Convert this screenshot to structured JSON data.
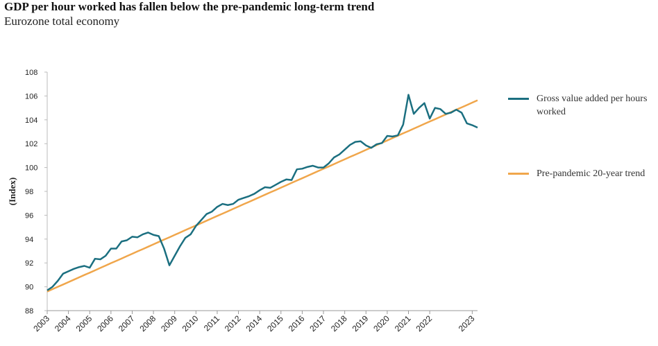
{
  "chart_data": {
    "type": "line",
    "title": "GDP per hour worked has fallen below the pre-pandemic long-term trend",
    "subtitle": "Eurozone total economy",
    "y_label": "(Index)",
    "categories": [
      "2003",
      null,
      null,
      null,
      "2004",
      null,
      null,
      null,
      "2005",
      null,
      null,
      null,
      "2006",
      null,
      null,
      null,
      "2007",
      null,
      null,
      null,
      "2008",
      null,
      null,
      null,
      "2009",
      null,
      null,
      null,
      "2010",
      null,
      null,
      null,
      "2011",
      null,
      null,
      null,
      "2012",
      null,
      null,
      null,
      "2014",
      null,
      null,
      null,
      "2015",
      null,
      null,
      null,
      "2016",
      null,
      null,
      null,
      "2017",
      null,
      null,
      null,
      "2018",
      null,
      null,
      null,
      "2019",
      null,
      null,
      null,
      "2020",
      null,
      null,
      null,
      "2021",
      null,
      null,
      null,
      "2022",
      null,
      null,
      null,
      null,
      null,
      null,
      null,
      "2023",
      null
    ],
    "series": [
      {
        "name": "Gross value added per hours worked",
        "color": "#1b6f80",
        "values": [
          89.7,
          90.0,
          90.5,
          91.1,
          91.3,
          91.5,
          91.65,
          91.75,
          91.6,
          92.35,
          92.3,
          92.6,
          93.2,
          93.2,
          93.8,
          93.9,
          94.2,
          94.15,
          94.4,
          94.55,
          94.35,
          94.25,
          93.2,
          91.8,
          92.6,
          93.4,
          94.1,
          94.4,
          95.1,
          95.6,
          96.1,
          96.3,
          96.7,
          96.95,
          96.85,
          96.95,
          97.3,
          97.45,
          97.6,
          97.8,
          98.1,
          98.35,
          98.3,
          98.55,
          98.8,
          99.0,
          98.95,
          99.85,
          99.9,
          100.05,
          100.15,
          100.0,
          100.0,
          100.35,
          100.85,
          101.1,
          101.5,
          101.9,
          102.15,
          102.2,
          101.85,
          101.65,
          101.95,
          102.05,
          102.65,
          102.6,
          102.7,
          103.6,
          106.1,
          104.5,
          105.0,
          105.4,
          104.1,
          105.0,
          104.9,
          104.5,
          104.6,
          104.85,
          104.6,
          103.7,
          103.55,
          103.35
        ]
      },
      {
        "name": "Pre-pandemic 20-year trend",
        "color": "#f0a64b",
        "values": [
          89.6,
          89.8,
          90.0,
          90.19,
          90.39,
          90.59,
          90.79,
          90.99,
          91.18,
          91.38,
          91.58,
          91.78,
          91.98,
          92.17,
          92.37,
          92.57,
          92.77,
          92.97,
          93.16,
          93.36,
          93.56,
          93.76,
          93.96,
          94.15,
          94.35,
          94.55,
          94.75,
          94.95,
          95.14,
          95.34,
          95.54,
          95.74,
          95.94,
          96.13,
          96.33,
          96.53,
          96.73,
          96.93,
          97.12,
          97.32,
          97.52,
          97.72,
          97.92,
          98.11,
          98.31,
          98.51,
          98.71,
          98.91,
          99.1,
          99.3,
          99.5,
          99.7,
          99.9,
          100.09,
          100.29,
          100.49,
          100.69,
          100.89,
          101.08,
          101.28,
          101.48,
          101.68,
          101.88,
          102.07,
          102.27,
          102.47,
          102.67,
          102.87,
          103.06,
          103.26,
          103.46,
          103.66,
          103.86,
          104.05,
          104.25,
          104.45,
          104.65,
          104.85,
          105.04,
          105.24,
          105.44,
          105.64
        ]
      }
    ],
    "ylim": [
      88,
      108
    ],
    "yticks": [
      88,
      90,
      92,
      94,
      96,
      98,
      100,
      102,
      104,
      106,
      108
    ],
    "grid": false,
    "legend": "right"
  }
}
